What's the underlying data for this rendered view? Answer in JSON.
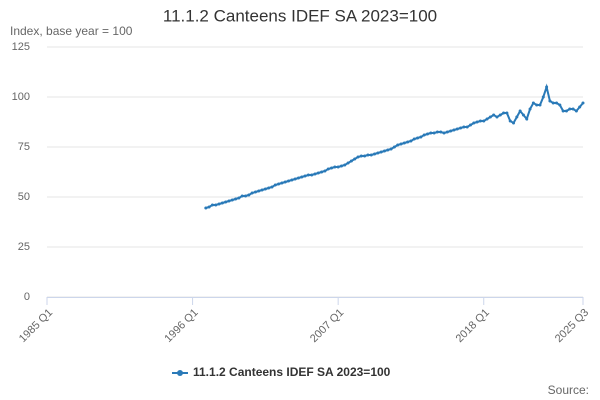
{
  "chart_data": {
    "type": "line",
    "title": "11.1.2 Canteens IDEF SA 2023=100",
    "y_label": "Index, base year = 100",
    "source": "Source:",
    "grid": true,
    "legend": "bottom",
    "xlim": [
      1985,
      2025.5
    ],
    "xticks": [
      {
        "value": 1985,
        "label": "1985 Q1"
      },
      {
        "value": 1996,
        "label": "1996 Q1"
      },
      {
        "value": 2007,
        "label": "2007 Q1"
      },
      {
        "value": 2018,
        "label": "2018 Q1"
      },
      {
        "value": 2025.5,
        "label": "2025 Q3"
      }
    ],
    "ylim": [
      0,
      125
    ],
    "yticks": [
      0,
      25,
      50,
      75,
      100,
      125
    ],
    "x": [
      1997,
      1997.25,
      1997.5,
      1997.75,
      1998,
      1998.25,
      1998.5,
      1998.75,
      1999,
      1999.25,
      1999.5,
      1999.75,
      2000,
      2000.25,
      2000.5,
      2000.75,
      2001,
      2001.25,
      2001.5,
      2001.75,
      2002,
      2002.25,
      2002.5,
      2002.75,
      2003,
      2003.25,
      2003.5,
      2003.75,
      2004,
      2004.25,
      2004.5,
      2004.75,
      2005,
      2005.25,
      2005.5,
      2005.75,
      2006,
      2006.25,
      2006.5,
      2006.75,
      2007,
      2007.25,
      2007.5,
      2007.75,
      2008,
      2008.25,
      2008.5,
      2008.75,
      2009,
      2009.25,
      2009.5,
      2009.75,
      2010,
      2010.25,
      2010.5,
      2010.75,
      2011,
      2011.25,
      2011.5,
      2011.75,
      2012,
      2012.25,
      2012.5,
      2012.75,
      2013,
      2013.25,
      2013.5,
      2013.75,
      2014,
      2014.25,
      2014.5,
      2014.75,
      2015,
      2015.25,
      2015.5,
      2015.75,
      2016,
      2016.25,
      2016.5,
      2016.75,
      2017,
      2017.25,
      2017.5,
      2017.75,
      2018,
      2018.25,
      2018.5,
      2018.75,
      2019,
      2019.25,
      2019.5,
      2019.75,
      2020,
      2020.25,
      2020.5,
      2020.75,
      2021,
      2021.25,
      2021.5,
      2021.75,
      2022,
      2022.25,
      2022.5,
      2022.75,
      2023,
      2023.25,
      2023.5,
      2023.75,
      2024,
      2024.25,
      2024.5,
      2024.75,
      2025,
      2025.25,
      2025.5
    ],
    "series": [
      {
        "name": "11.1.2 Canteens IDEF SA 2023=100",
        "color": "#2a7ab8",
        "values": [
          44.5,
          45,
          46,
          46,
          46.5,
          47,
          47.5,
          48,
          48.5,
          49,
          49.5,
          50.5,
          50.5,
          51,
          52,
          52.5,
          53,
          53.5,
          54,
          54.5,
          55,
          56,
          56.5,
          57,
          57.5,
          58,
          58.5,
          59,
          59.5,
          60,
          60.5,
          61,
          61,
          61.5,
          62,
          62.5,
          63,
          64,
          64.5,
          65,
          65,
          65.5,
          66,
          67,
          68,
          69,
          70,
          70.5,
          70.5,
          71,
          71,
          71.5,
          72,
          72.5,
          73,
          73.5,
          74,
          75,
          76,
          76.5,
          77,
          77.5,
          78,
          79,
          79.5,
          80,
          81,
          81.5,
          82,
          82,
          82.5,
          82.5,
          82,
          82.5,
          83,
          83.5,
          84,
          84.5,
          85,
          85,
          86,
          87,
          87.5,
          88,
          88,
          89,
          90,
          91,
          90,
          91,
          92,
          92,
          88,
          87,
          90,
          93,
          91,
          89,
          94,
          97,
          96,
          96,
          100,
          105,
          98,
          97,
          97,
          96,
          93,
          93,
          94,
          94,
          93,
          95,
          97
        ]
      }
    ]
  }
}
